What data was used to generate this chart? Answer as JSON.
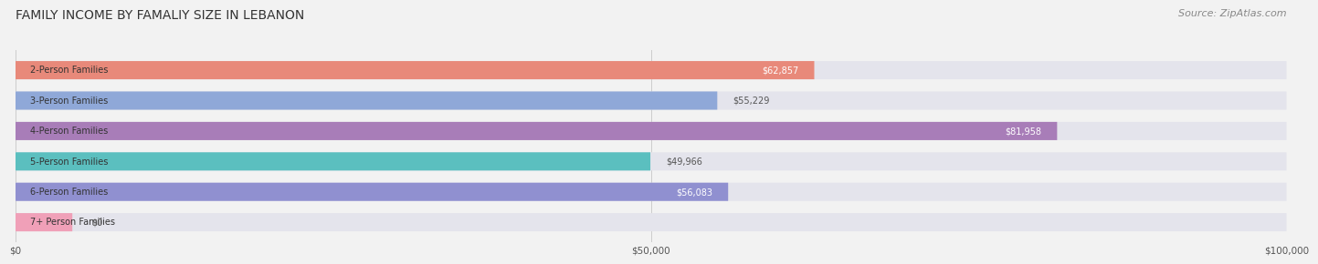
{
  "title": "FAMILY INCOME BY FAMALIY SIZE IN LEBANON",
  "source": "Source: ZipAtlas.com",
  "categories": [
    "2-Person Families",
    "3-Person Families",
    "4-Person Families",
    "5-Person Families",
    "6-Person Families",
    "7+ Person Families"
  ],
  "values": [
    62857,
    55229,
    81958,
    49966,
    56083,
    0
  ],
  "bar_colors": [
    "#E8897A",
    "#8FA8D8",
    "#A87DB8",
    "#5BBFBF",
    "#9090D0",
    "#F0A0B8"
  ],
  "x_ticks": [
    0,
    50000,
    100000
  ],
  "x_tick_labels": [
    "$0",
    "$50,000",
    "$100,000"
  ],
  "xlim": [
    0,
    100000
  ],
  "background_color": "#f2f2f2",
  "bar_bg_color": "#e4e4ec",
  "title_fontsize": 10,
  "source_fontsize": 8,
  "label_fontsize": 7,
  "value_fontsize": 7
}
